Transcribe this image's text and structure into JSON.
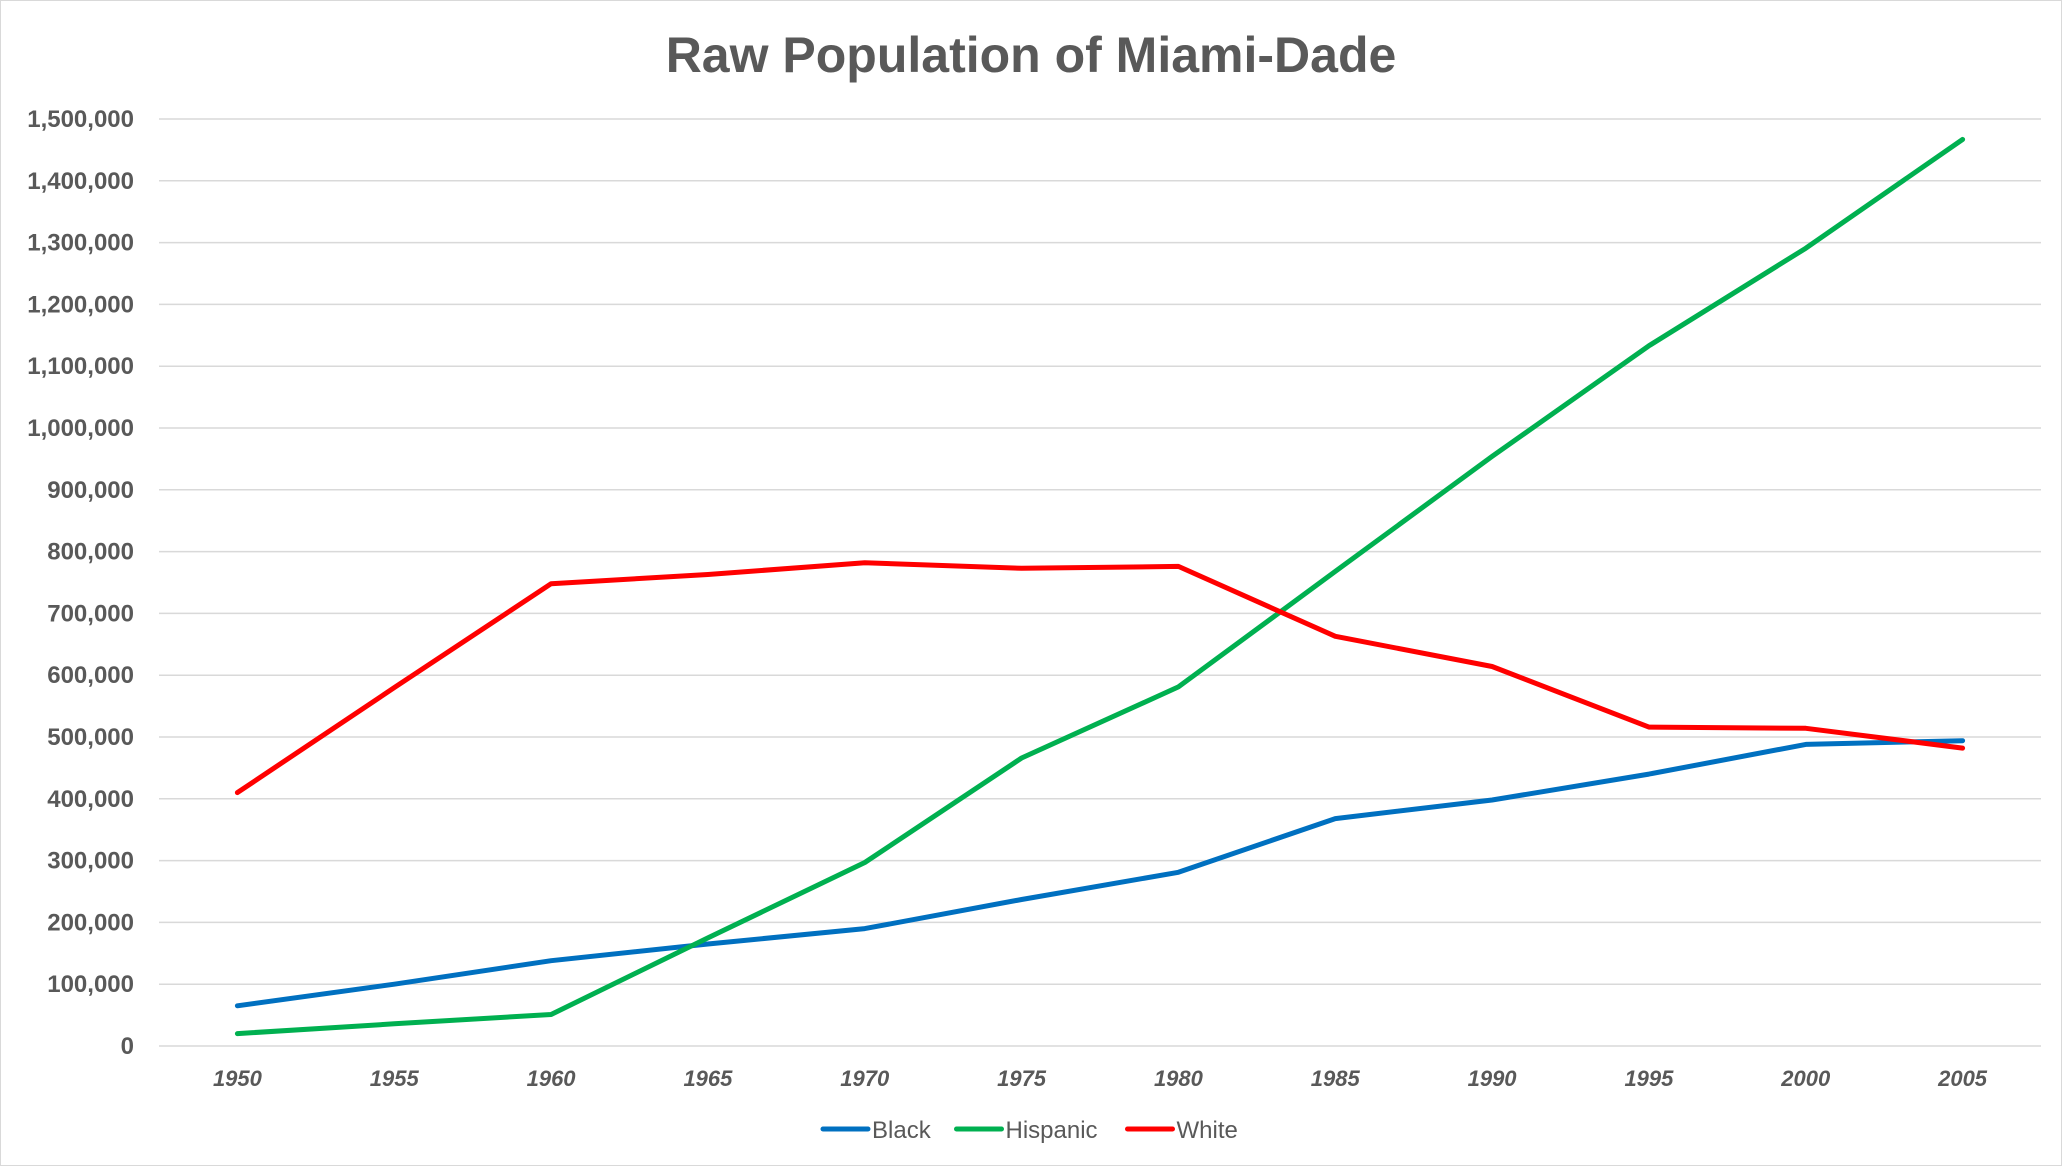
{
  "chart_data": {
    "type": "line",
    "title": "Raw Population of Miami-Dade",
    "xlabel": "",
    "ylabel": "",
    "x": [
      "1950",
      "1955",
      "1960",
      "1965",
      "1970",
      "1975",
      "1980",
      "1985",
      "1990",
      "1995",
      "2000",
      "2005"
    ],
    "ylim": [
      0,
      1500000
    ],
    "yticks": [
      "0",
      "100,000",
      "200,000",
      "300,000",
      "400,000",
      "500,000",
      "600,000",
      "700,000",
      "800,000",
      "900,000",
      "1,000,000",
      "1,100,000",
      "1,200,000",
      "1,300,000",
      "1,400,000",
      "1,500,000"
    ],
    "grid": true,
    "legend_position": "bottom",
    "series": [
      {
        "name": "Black",
        "color": "#0070C0",
        "values": [
          65000,
          100000,
          138000,
          165000,
          190000,
          237000,
          281000,
          368000,
          398000,
          440000,
          488000,
          494000
        ]
      },
      {
        "name": "Hispanic",
        "color": "#00B050",
        "values": [
          20000,
          36000,
          51000,
          175000,
          297000,
          466000,
          581000,
          768000,
          954000,
          1133000,
          1291000,
          1467000
        ]
      },
      {
        "name": "White",
        "color": "#FF0000",
        "values": [
          410000,
          580000,
          748000,
          763000,
          782000,
          773000,
          776000,
          663000,
          614000,
          516000,
          514000,
          482000
        ]
      }
    ]
  }
}
